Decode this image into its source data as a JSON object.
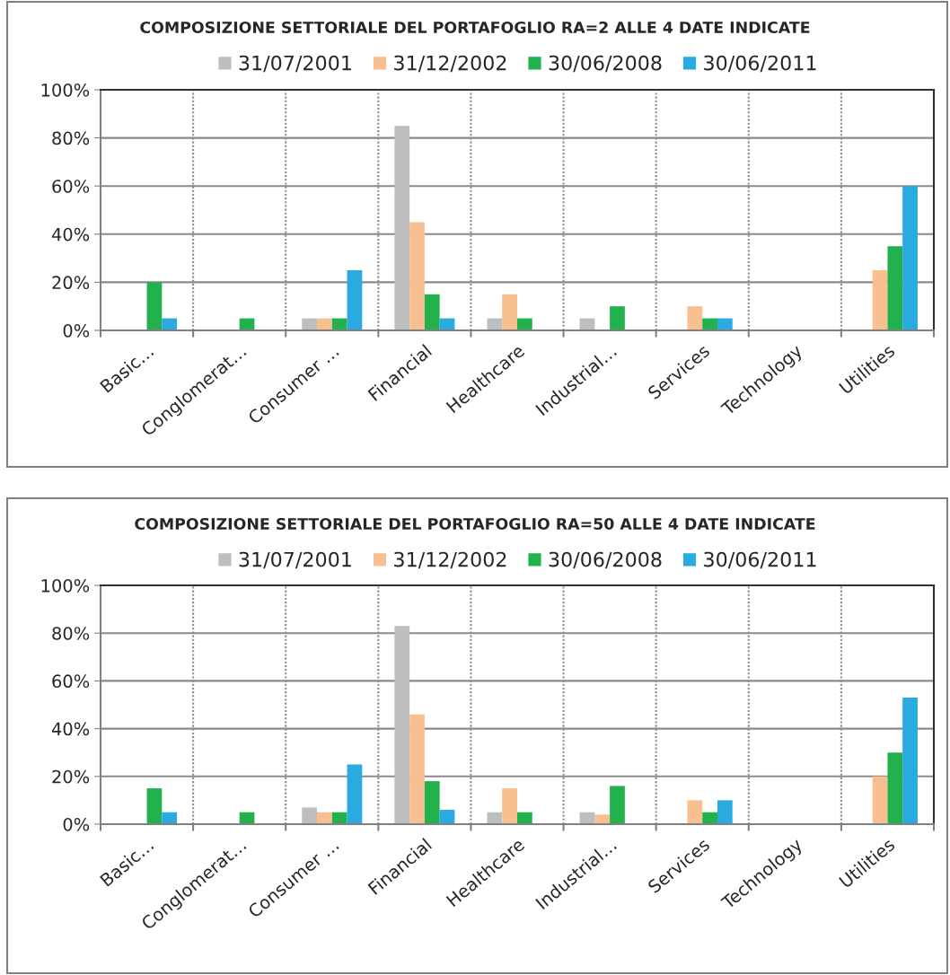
{
  "chart_data": [
    {
      "type": "bar",
      "title": "COMPOSIZIONE SETTORIALE DEL PORTAFOGLIO RA=2 ALLE 4 DATE INDICATE",
      "categories": [
        "Basic…",
        "Conglomerat…",
        "Consumer …",
        "Financial",
        "Healthcare",
        "Industrial…",
        "Services",
        "Technology",
        "Utilities"
      ],
      "series": [
        {
          "name": "31/07/2001",
          "color": "#bcbec0",
          "values": [
            0,
            0,
            5,
            85,
            5,
            5,
            0,
            0,
            0
          ]
        },
        {
          "name": "31/12/2002",
          "color": "#f8c090",
          "values": [
            0,
            0,
            5,
            45,
            15,
            0,
            10,
            0,
            25
          ]
        },
        {
          "name": "30/06/2008",
          "color": "#22b14c",
          "values": [
            20,
            5,
            5,
            15,
            5,
            10,
            5,
            0,
            35
          ]
        },
        {
          "name": "30/06/2011",
          "color": "#29abe2",
          "values": [
            5,
            0,
            25,
            5,
            0,
            0,
            5,
            0,
            60
          ]
        }
      ],
      "ylim": [
        0,
        100
      ],
      "yticks": [
        {
          "value": 0,
          "label": "0%"
        },
        {
          "value": 20,
          "label": "20%"
        },
        {
          "value": 40,
          "label": "40%"
        },
        {
          "value": 60,
          "label": "60%"
        },
        {
          "value": 80,
          "label": "80%"
        },
        {
          "value": 100,
          "label": "100%"
        }
      ],
      "grid": true,
      "legend": "top"
    },
    {
      "type": "bar",
      "title": "COMPOSIZIONE SETTORIALE DEL PORTAFOGLIO RA=50 ALLE 4 DATE INDICATE",
      "categories": [
        "Basic…",
        "Conglomerat…",
        "Consumer …",
        "Financial",
        "Healthcare",
        "Industrial…",
        "Services",
        "Technology",
        "Utilities"
      ],
      "series": [
        {
          "name": "31/07/2001",
          "color": "#bcbec0",
          "values": [
            0,
            0,
            7,
            83,
            5,
            5,
            0,
            0,
            0
          ]
        },
        {
          "name": "31/12/2002",
          "color": "#f8c090",
          "values": [
            0,
            0,
            5,
            46,
            15,
            4,
            10,
            0,
            20
          ]
        },
        {
          "name": "30/06/2008",
          "color": "#22b14c",
          "values": [
            15,
            5,
            5,
            18,
            5,
            16,
            5,
            0,
            30
          ]
        },
        {
          "name": "30/06/2011",
          "color": "#29abe2",
          "values": [
            5,
            0,
            25,
            6,
            0,
            0,
            10,
            0,
            53
          ]
        }
      ],
      "ylim": [
        0,
        100
      ],
      "yticks": [
        {
          "value": 0,
          "label": "0%"
        },
        {
          "value": 20,
          "label": "20%"
        },
        {
          "value": 40,
          "label": "40%"
        },
        {
          "value": 60,
          "label": "60%"
        },
        {
          "value": 80,
          "label": "80%"
        },
        {
          "value": 100,
          "label": "100%"
        }
      ],
      "grid": true,
      "legend": "top"
    }
  ]
}
